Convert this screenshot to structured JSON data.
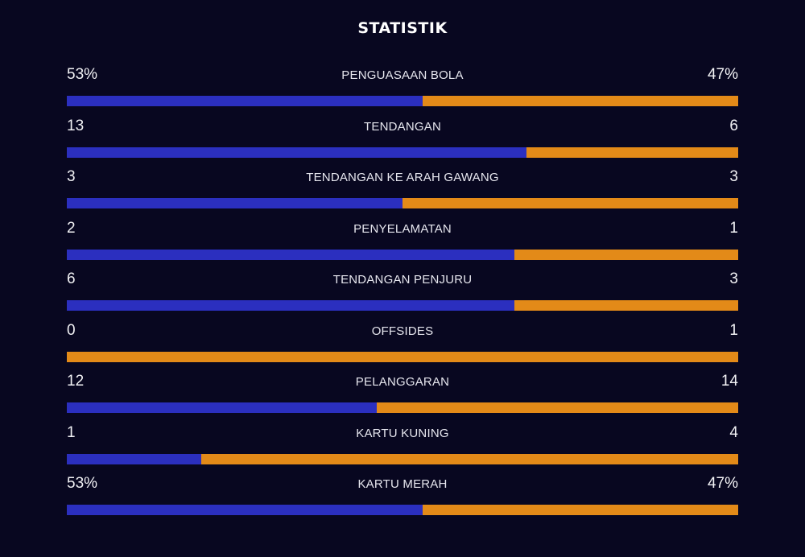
{
  "title": "STATISTIK",
  "colors": {
    "home": "#2b2fbf",
    "away": "#e38a18",
    "background": "#080720"
  },
  "chart_data": {
    "type": "bar",
    "orientation": "horizontal-stacked-comparison",
    "title": "STATISTIK",
    "rows": [
      {
        "label": "PENGUASAAN BOLA",
        "home": "53%",
        "away": "47%",
        "home_value": 53,
        "away_value": 47
      },
      {
        "label": "TENDANGAN",
        "home": "13",
        "away": "6",
        "home_value": 13,
        "away_value": 6
      },
      {
        "label": "TENDANGAN KE ARAH GAWANG",
        "home": "3",
        "away": "3",
        "home_value": 3,
        "away_value": 3
      },
      {
        "label": "PENYELAMATAN",
        "home": "2",
        "away": "1",
        "home_value": 2,
        "away_value": 1
      },
      {
        "label": "TENDANGAN PENJURU",
        "home": "6",
        "away": "3",
        "home_value": 6,
        "away_value": 3
      },
      {
        "label": "OFFSIDES",
        "home": "0",
        "away": "1",
        "home_value": 0,
        "away_value": 1
      },
      {
        "label": "PELANGGARAN",
        "home": "12",
        "away": "14",
        "home_value": 12,
        "away_value": 14
      },
      {
        "label": "KARTU KUNING",
        "home": "1",
        "away": "4",
        "home_value": 1,
        "away_value": 4
      },
      {
        "label": "KARTU MERAH",
        "home": "53%",
        "away": "47%",
        "home_value": 53,
        "away_value": 47
      }
    ]
  }
}
